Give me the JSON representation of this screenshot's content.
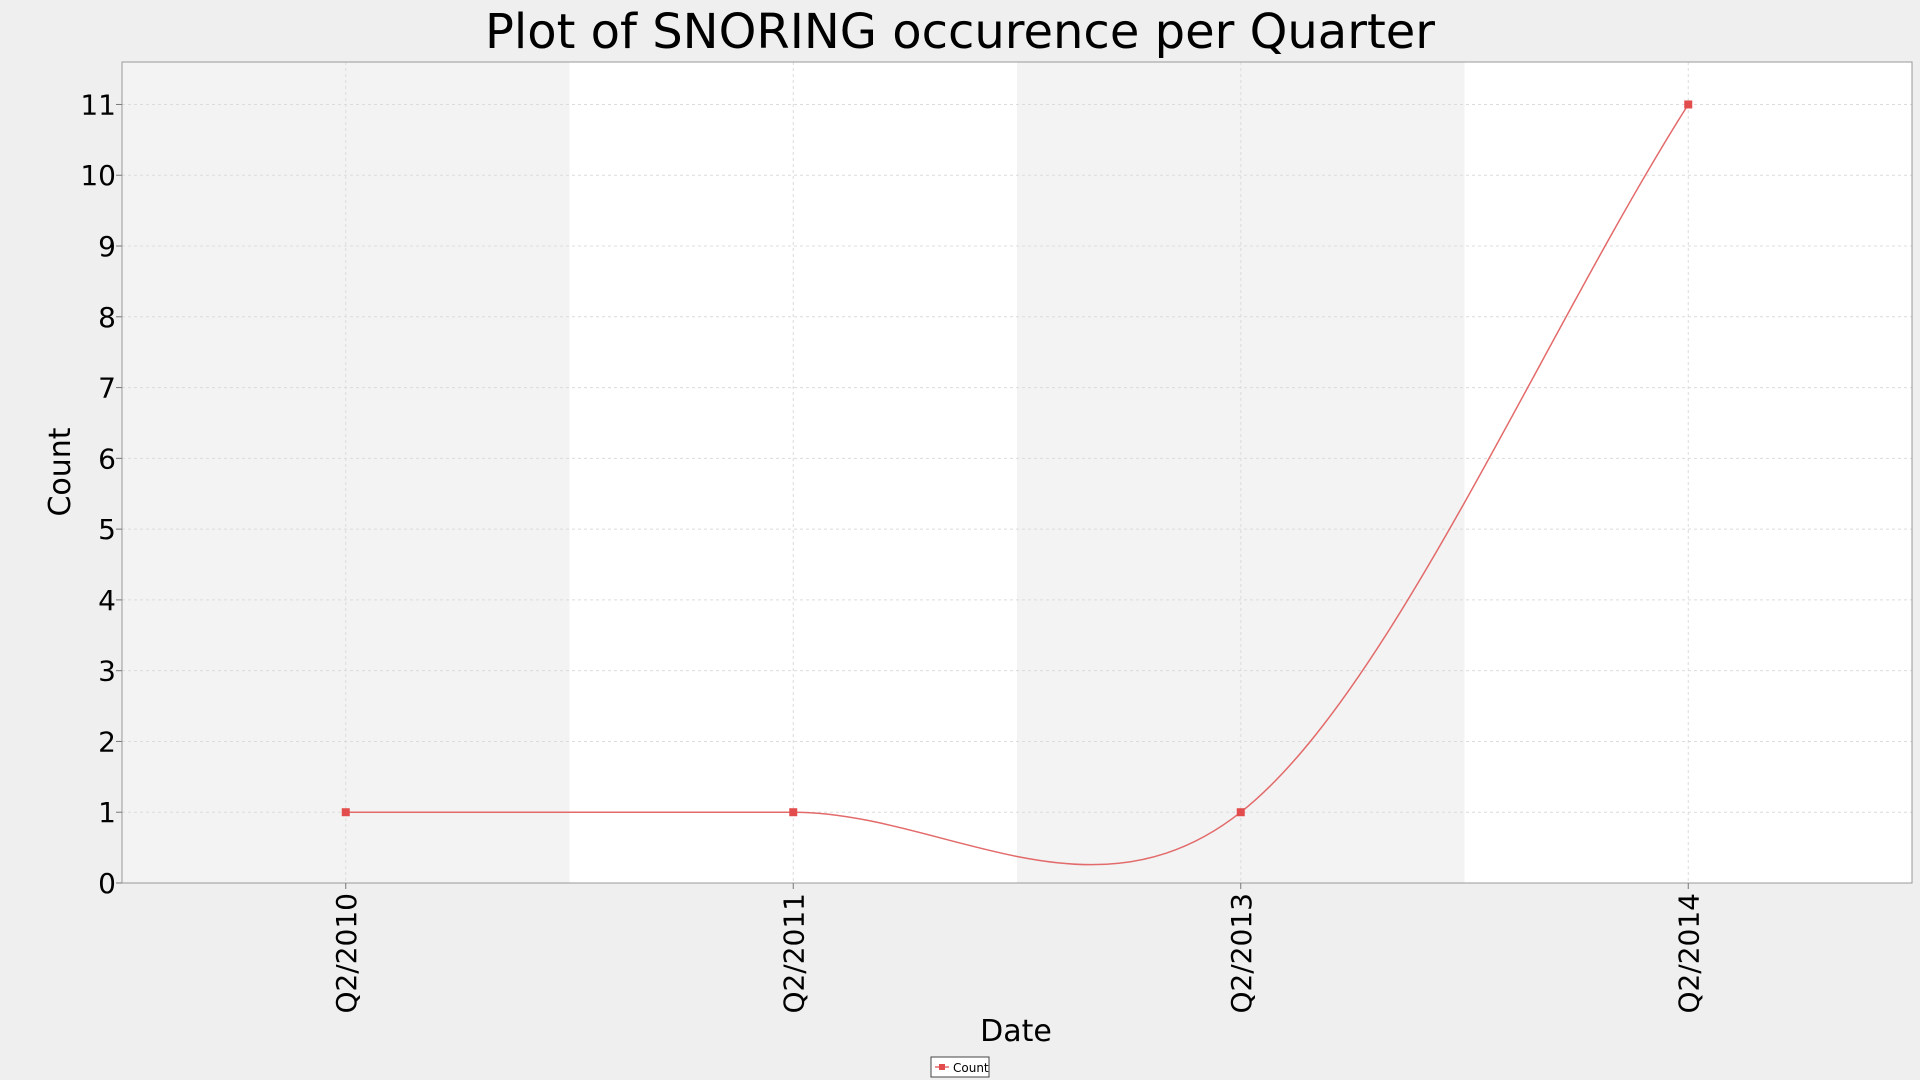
{
  "chart_data": {
    "type": "line",
    "title": "Plot of SNORING occurence per Quarter",
    "xlabel": "Date",
    "ylabel": "Count",
    "categories": [
      "Q2/2010",
      "Q2/2011",
      "Q2/2013",
      "Q2/2014"
    ],
    "ylim": [
      0,
      11.6
    ],
    "yticks": [
      0,
      1,
      2,
      3,
      4,
      5,
      6,
      7,
      8,
      9,
      10,
      11
    ],
    "grid": true,
    "legend_position": "bottom-center",
    "series": [
      {
        "name": "Count",
        "color": "#e36a6a",
        "values": [
          1,
          1,
          1,
          11
        ]
      }
    ],
    "band_colors": [
      "#f3f3f3",
      "#ffffff"
    ]
  }
}
